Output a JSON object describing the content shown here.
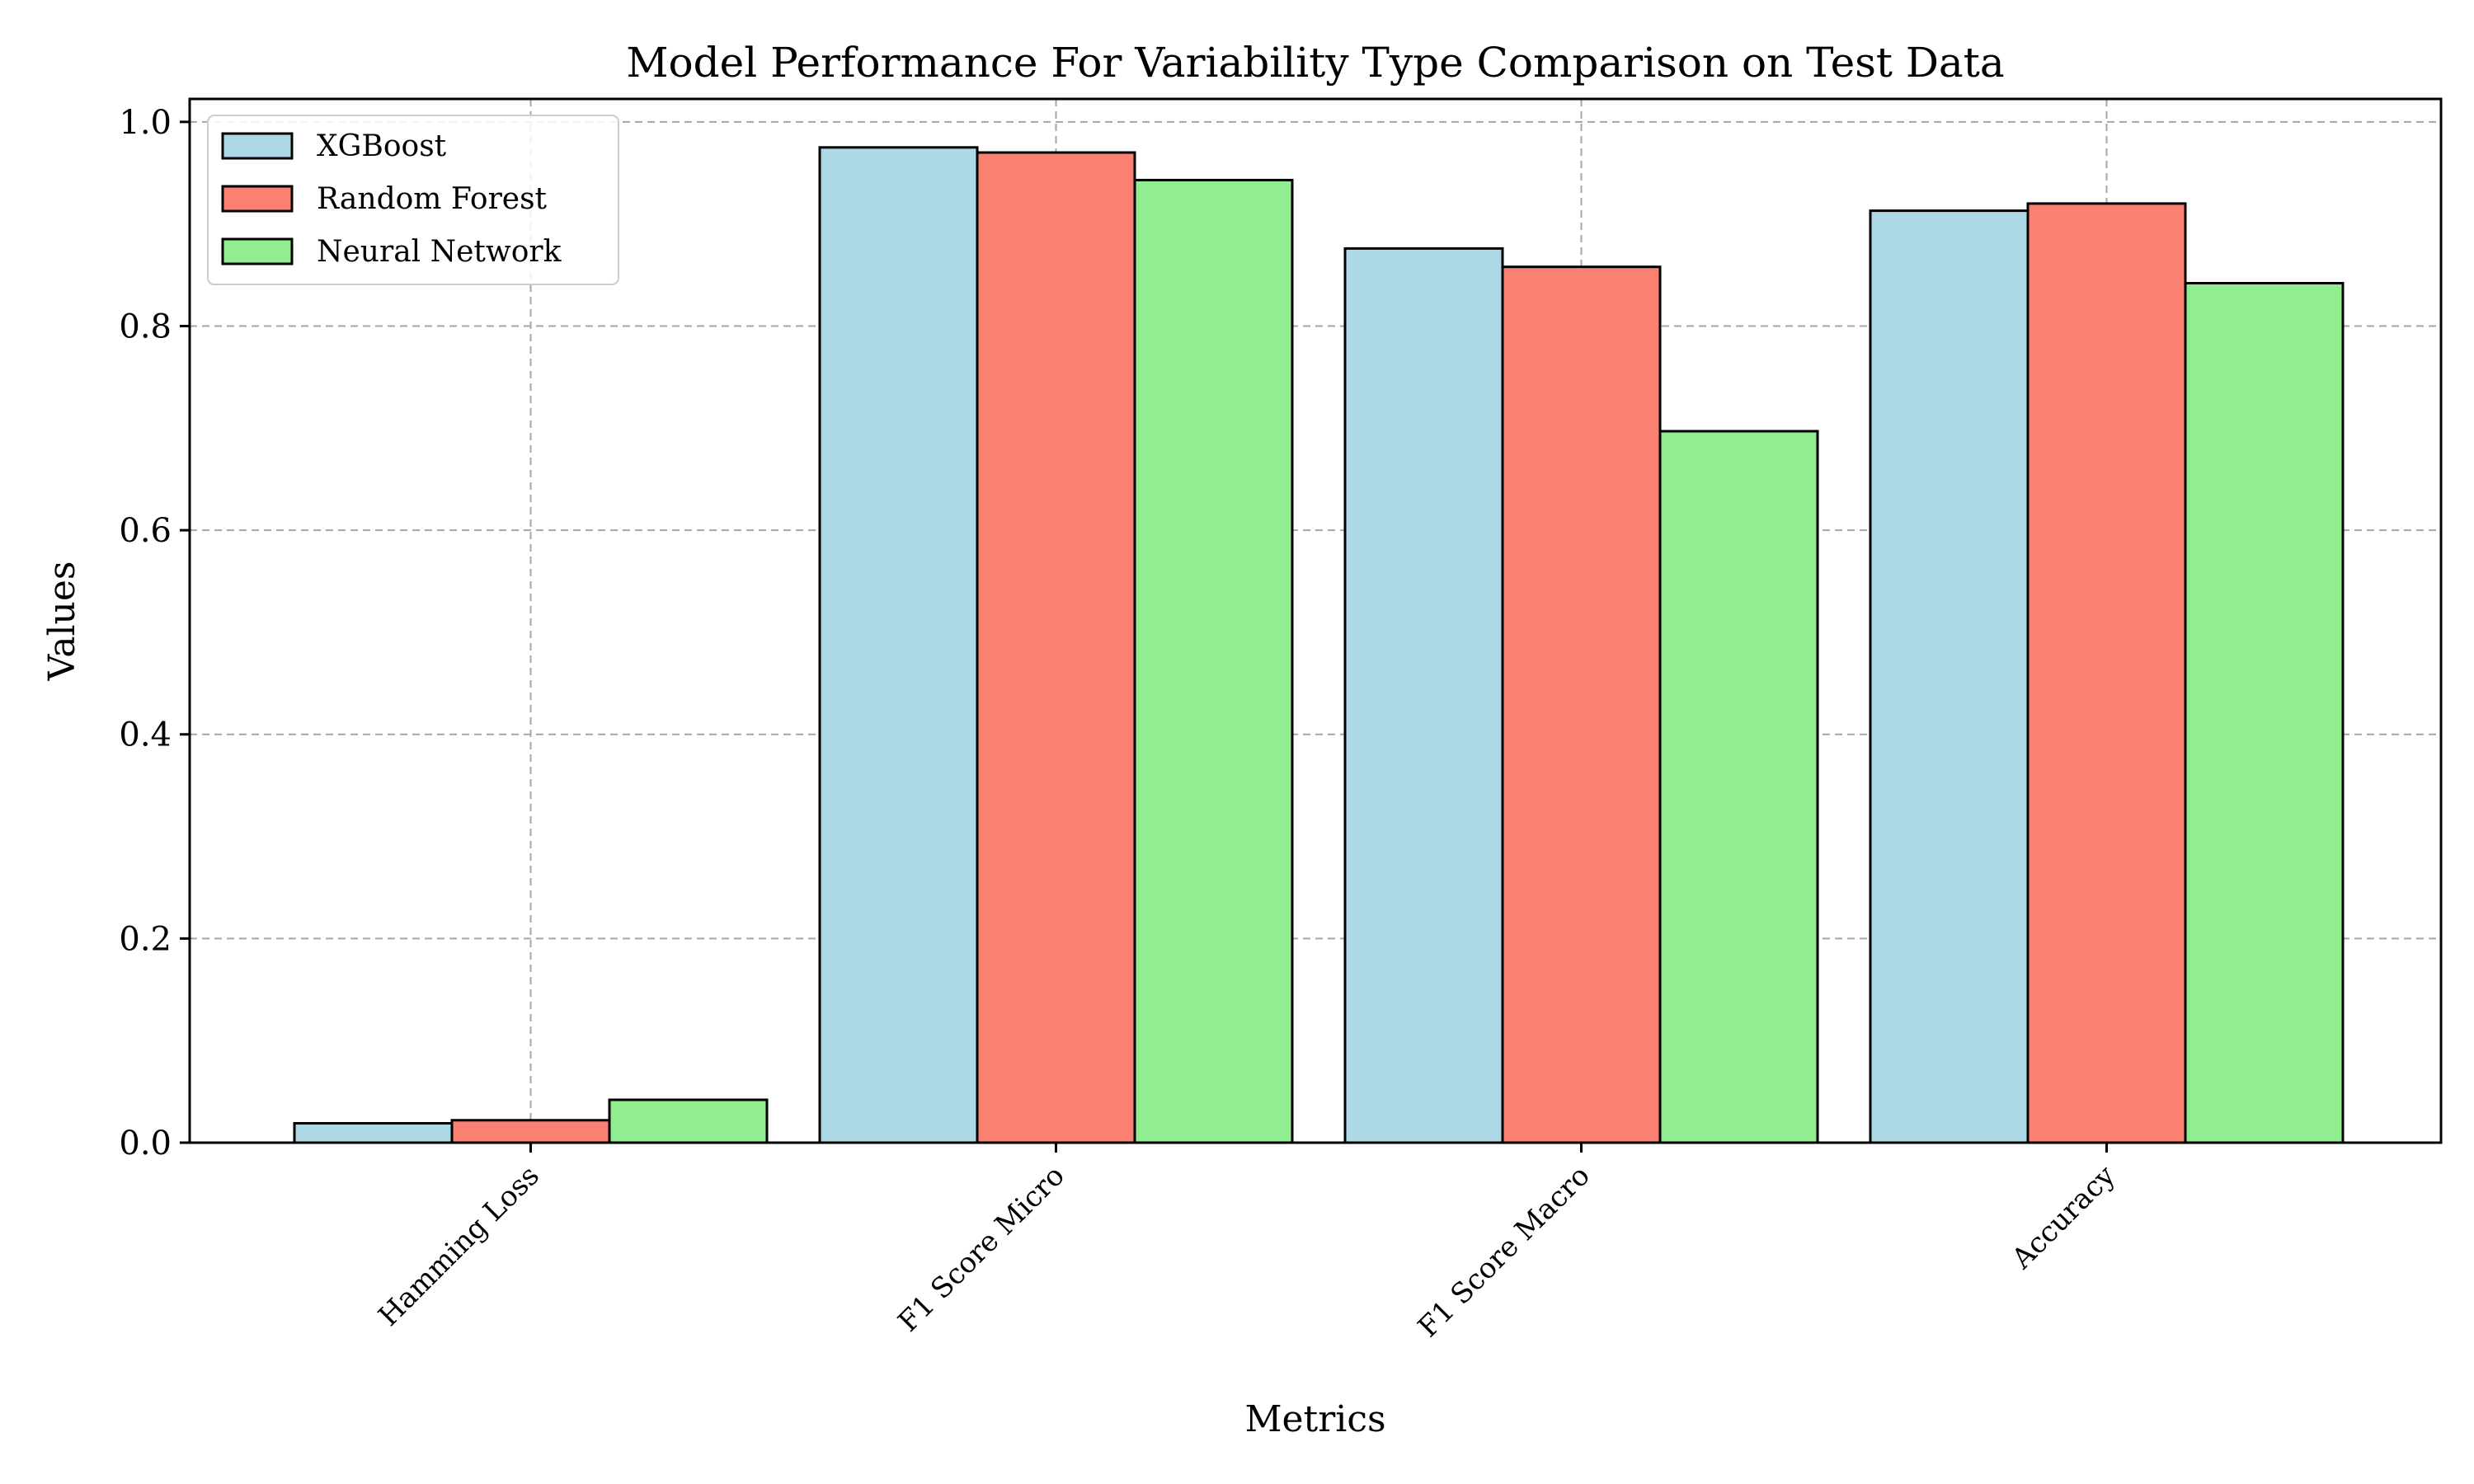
{
  "chart_data": {
    "type": "bar",
    "title": "Model Performance For Variability Type Comparison on Test Data",
    "xlabel": "Metrics",
    "ylabel": "Values",
    "categories": [
      "Hamming Loss",
      "F1 Score Micro",
      "F1 Score Macro",
      "Accuracy"
    ],
    "series": [
      {
        "name": "XGBoost",
        "color": "#add8e6",
        "values": [
          0.019,
          0.975,
          0.876,
          0.913
        ]
      },
      {
        "name": "Random Forest",
        "color": "#fa8072",
        "values": [
          0.022,
          0.97,
          0.858,
          0.92
        ]
      },
      {
        "name": "Neural Network",
        "color": "#90ee90",
        "values": [
          0.042,
          0.943,
          0.697,
          0.842
        ]
      }
    ],
    "yticks": [
      "0.0",
      "0.2",
      "0.4",
      "0.6",
      "0.8",
      "1.0"
    ],
    "ylim": [
      0,
      1.0225
    ],
    "grid": true,
    "legend_position": "top-left"
  }
}
